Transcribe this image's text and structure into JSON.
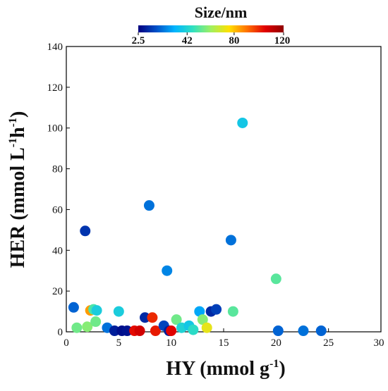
{
  "chart_data": {
    "type": "scatter",
    "xlabel": "HY (mmol g",
    "xlabel_sup": "-1",
    "xlabel_end": ")",
    "ylabel": "HER (mmol L",
    "ylabel_sup1": "-1",
    "ylabel_mid": "h",
    "ylabel_sup2": "-1",
    "ylabel_end": ")",
    "xlim": [
      0,
      30
    ],
    "ylim": [
      0,
      140
    ],
    "xticks": [
      0,
      5,
      10,
      15,
      20,
      25,
      30
    ],
    "yticks": [
      0,
      20,
      40,
      60,
      80,
      100,
      120,
      140
    ],
    "grid": false,
    "colorbar": {
      "title": "Size/nm",
      "ticks": [
        {
          "label": "2.5",
          "value": 2.5
        },
        {
          "label": "42",
          "value": 42
        },
        {
          "label": "80",
          "value": 80
        },
        {
          "label": "120",
          "value": 120
        }
      ],
      "range": [
        2.5,
        120
      ],
      "colormap": [
        "#00007f",
        "#0050c8",
        "#00b4ff",
        "#30e0c0",
        "#a0f060",
        "#ffe000",
        "#ff7000",
        "#e00000",
        "#900000"
      ]
    },
    "points": [
      {
        "x": 0.7,
        "y": 12,
        "size": 20
      },
      {
        "x": 1.0,
        "y": 2,
        "size": 55
      },
      {
        "x": 1.8,
        "y": 49.5,
        "size": 12
      },
      {
        "x": 2.0,
        "y": 2.5,
        "size": 58
      },
      {
        "x": 2.3,
        "y": 10.5,
        "size": 85
      },
      {
        "x": 2.6,
        "y": 11,
        "size": 50
      },
      {
        "x": 2.9,
        "y": 10.5,
        "size": 40
      },
      {
        "x": 2.8,
        "y": 5,
        "size": 55
      },
      {
        "x": 3.9,
        "y": 2,
        "size": 22
      },
      {
        "x": 4.6,
        "y": 0.5,
        "size": 8
      },
      {
        "x": 5.0,
        "y": 10,
        "size": 40
      },
      {
        "x": 5.3,
        "y": 0.5,
        "size": 5
      },
      {
        "x": 5.8,
        "y": 0.5,
        "size": 6
      },
      {
        "x": 6.5,
        "y": 0.5,
        "size": 104
      },
      {
        "x": 7.0,
        "y": 0.5,
        "size": 108
      },
      {
        "x": 7.5,
        "y": 7,
        "size": 10
      },
      {
        "x": 7.9,
        "y": 62,
        "size": 22
      },
      {
        "x": 8.2,
        "y": 7,
        "size": 100
      },
      {
        "x": 8.5,
        "y": 0.5,
        "size": 102
      },
      {
        "x": 9.3,
        "y": 3,
        "size": 15
      },
      {
        "x": 9.6,
        "y": 30,
        "size": 25
      },
      {
        "x": 9.8,
        "y": 0.5,
        "size": 8
      },
      {
        "x": 10.0,
        "y": 0.5,
        "size": 105
      },
      {
        "x": 10.5,
        "y": 6,
        "size": 55
      },
      {
        "x": 11.0,
        "y": 2,
        "size": 42
      },
      {
        "x": 11.7,
        "y": 3,
        "size": 38
      },
      {
        "x": 12.1,
        "y": 1,
        "size": 45
      },
      {
        "x": 12.7,
        "y": 10,
        "size": 30
      },
      {
        "x": 13.0,
        "y": 6,
        "size": 58
      },
      {
        "x": 13.4,
        "y": 2,
        "size": 72
      },
      {
        "x": 13.8,
        "y": 10,
        "size": 10
      },
      {
        "x": 14.3,
        "y": 11,
        "size": 14
      },
      {
        "x": 15.7,
        "y": 45,
        "size": 22
      },
      {
        "x": 15.9,
        "y": 10,
        "size": 52
      },
      {
        "x": 16.8,
        "y": 102.5,
        "size": 38
      },
      {
        "x": 20.0,
        "y": 26,
        "size": 52
      },
      {
        "x": 20.2,
        "y": 0.5,
        "size": 20
      },
      {
        "x": 22.6,
        "y": 0.5,
        "size": 22
      },
      {
        "x": 24.3,
        "y": 0.5,
        "size": 20
      }
    ]
  }
}
